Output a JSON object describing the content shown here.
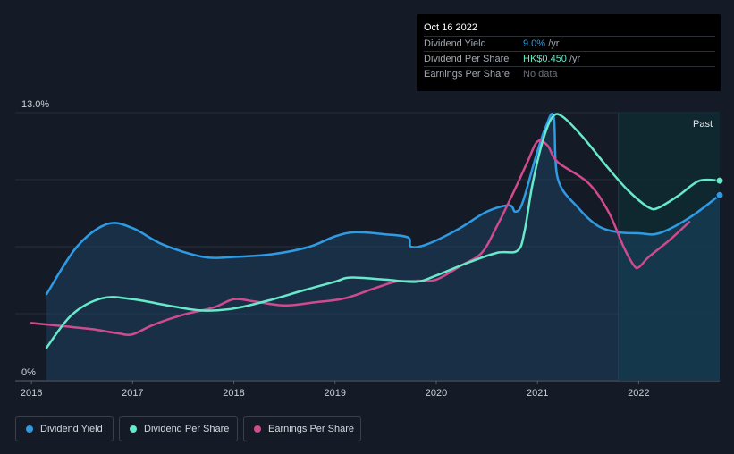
{
  "tooltip": {
    "date": "Oct 16 2022",
    "rows": [
      {
        "label": "Dividend Yield",
        "value": "9.0%",
        "unit": " /yr",
        "color": "#2e9be5"
      },
      {
        "label": "Dividend Per Share",
        "value": "HK$0.450",
        "unit": " /yr",
        "color": "#68e9c9"
      },
      {
        "label": "Earnings Per Share",
        "value": "No data",
        "unit": "",
        "color": "#6b717b"
      }
    ]
  },
  "past_label": "Past",
  "legend": [
    {
      "label": "Dividend Yield",
      "color": "#2e9be5"
    },
    {
      "label": "Dividend Per Share",
      "color": "#68e9c9"
    },
    {
      "label": "Earnings Per Share",
      "color": "#d04a8e"
    }
  ],
  "chart_data": {
    "type": "line",
    "y_ticks": [
      {
        "value": 13.0,
        "label": "13.0%"
      },
      {
        "value": 0,
        "label": "0%"
      }
    ],
    "ylim": [
      0,
      13.0
    ],
    "xlim": [
      2015.84,
      2022.8
    ],
    "x_ticks": [
      "2016",
      "2017",
      "2018",
      "2019",
      "2020",
      "2021",
      "2022"
    ],
    "past_region_start": 2021.8,
    "series": [
      {
        "name": "Dividend Yield",
        "color": "#2e9be5",
        "fill": true,
        "points": [
          [
            2016.15,
            4.2
          ],
          [
            2016.45,
            6.5
          ],
          [
            2016.75,
            7.6
          ],
          [
            2017.0,
            7.4
          ],
          [
            2017.3,
            6.6
          ],
          [
            2017.7,
            6.0
          ],
          [
            2018.0,
            6.0
          ],
          [
            2018.4,
            6.15
          ],
          [
            2018.75,
            6.5
          ],
          [
            2019.0,
            7.0
          ],
          [
            2019.2,
            7.2
          ],
          [
            2019.5,
            7.1
          ],
          [
            2019.72,
            6.95
          ],
          [
            2019.75,
            6.5
          ],
          [
            2019.9,
            6.6
          ],
          [
            2020.2,
            7.3
          ],
          [
            2020.5,
            8.2
          ],
          [
            2020.72,
            8.5
          ],
          [
            2020.78,
            8.2
          ],
          [
            2020.85,
            8.6
          ],
          [
            2020.98,
            10.8
          ],
          [
            2021.08,
            12.3
          ],
          [
            2021.16,
            12.8
          ],
          [
            2021.2,
            9.8
          ],
          [
            2021.4,
            8.4
          ],
          [
            2021.6,
            7.5
          ],
          [
            2021.8,
            7.2
          ],
          [
            2022.0,
            7.15
          ],
          [
            2022.2,
            7.15
          ],
          [
            2022.5,
            7.9
          ],
          [
            2022.8,
            9.0
          ]
        ]
      },
      {
        "name": "Dividend Per Share",
        "color": "#68e9c9",
        "fill": false,
        "points": [
          [
            2016.15,
            1.6
          ],
          [
            2016.4,
            3.2
          ],
          [
            2016.7,
            4.0
          ],
          [
            2017.0,
            3.95
          ],
          [
            2017.4,
            3.6
          ],
          [
            2017.7,
            3.4
          ],
          [
            2018.0,
            3.5
          ],
          [
            2018.35,
            3.9
          ],
          [
            2018.7,
            4.4
          ],
          [
            2019.0,
            4.8
          ],
          [
            2019.15,
            5.0
          ],
          [
            2019.5,
            4.9
          ],
          [
            2019.8,
            4.8
          ],
          [
            2020.0,
            5.1
          ],
          [
            2020.3,
            5.7
          ],
          [
            2020.6,
            6.2
          ],
          [
            2020.8,
            6.3
          ],
          [
            2020.87,
            7.2
          ],
          [
            2020.95,
            9.5
          ],
          [
            2021.05,
            11.6
          ],
          [
            2021.15,
            12.8
          ],
          [
            2021.25,
            12.8
          ],
          [
            2021.45,
            11.8
          ],
          [
            2021.7,
            10.3
          ],
          [
            2021.9,
            9.2
          ],
          [
            2022.1,
            8.4
          ],
          [
            2022.2,
            8.4
          ],
          [
            2022.4,
            9.0
          ],
          [
            2022.6,
            9.7
          ],
          [
            2022.8,
            9.7
          ]
        ]
      },
      {
        "name": "Earnings Per Share",
        "color": "#d04a8e",
        "fill": false,
        "points": [
          [
            2016.0,
            2.8
          ],
          [
            2016.3,
            2.65
          ],
          [
            2016.6,
            2.5
          ],
          [
            2016.85,
            2.3
          ],
          [
            2017.0,
            2.25
          ],
          [
            2017.2,
            2.7
          ],
          [
            2017.5,
            3.2
          ],
          [
            2017.8,
            3.55
          ],
          [
            2018.0,
            3.95
          ],
          [
            2018.2,
            3.85
          ],
          [
            2018.5,
            3.65
          ],
          [
            2018.8,
            3.8
          ],
          [
            2019.1,
            4.0
          ],
          [
            2019.4,
            4.5
          ],
          [
            2019.6,
            4.8
          ],
          [
            2019.8,
            4.85
          ],
          [
            2020.0,
            4.9
          ],
          [
            2020.25,
            5.6
          ],
          [
            2020.45,
            6.2
          ],
          [
            2020.6,
            7.5
          ],
          [
            2020.75,
            9.0
          ],
          [
            2020.9,
            10.6
          ],
          [
            2021.0,
            11.6
          ],
          [
            2021.1,
            11.4
          ],
          [
            2021.2,
            10.6
          ],
          [
            2021.5,
            9.6
          ],
          [
            2021.7,
            8.2
          ],
          [
            2021.85,
            6.5
          ],
          [
            2021.95,
            5.6
          ],
          [
            2022.0,
            5.5
          ],
          [
            2022.1,
            6.0
          ],
          [
            2022.3,
            6.8
          ],
          [
            2022.5,
            7.7
          ]
        ]
      }
    ],
    "end_markers": [
      {
        "series": "Dividend Per Share",
        "x": 2022.8,
        "y": 9.7
      },
      {
        "series": "Dividend Yield",
        "x": 2022.8,
        "y": 9.0
      }
    ]
  }
}
